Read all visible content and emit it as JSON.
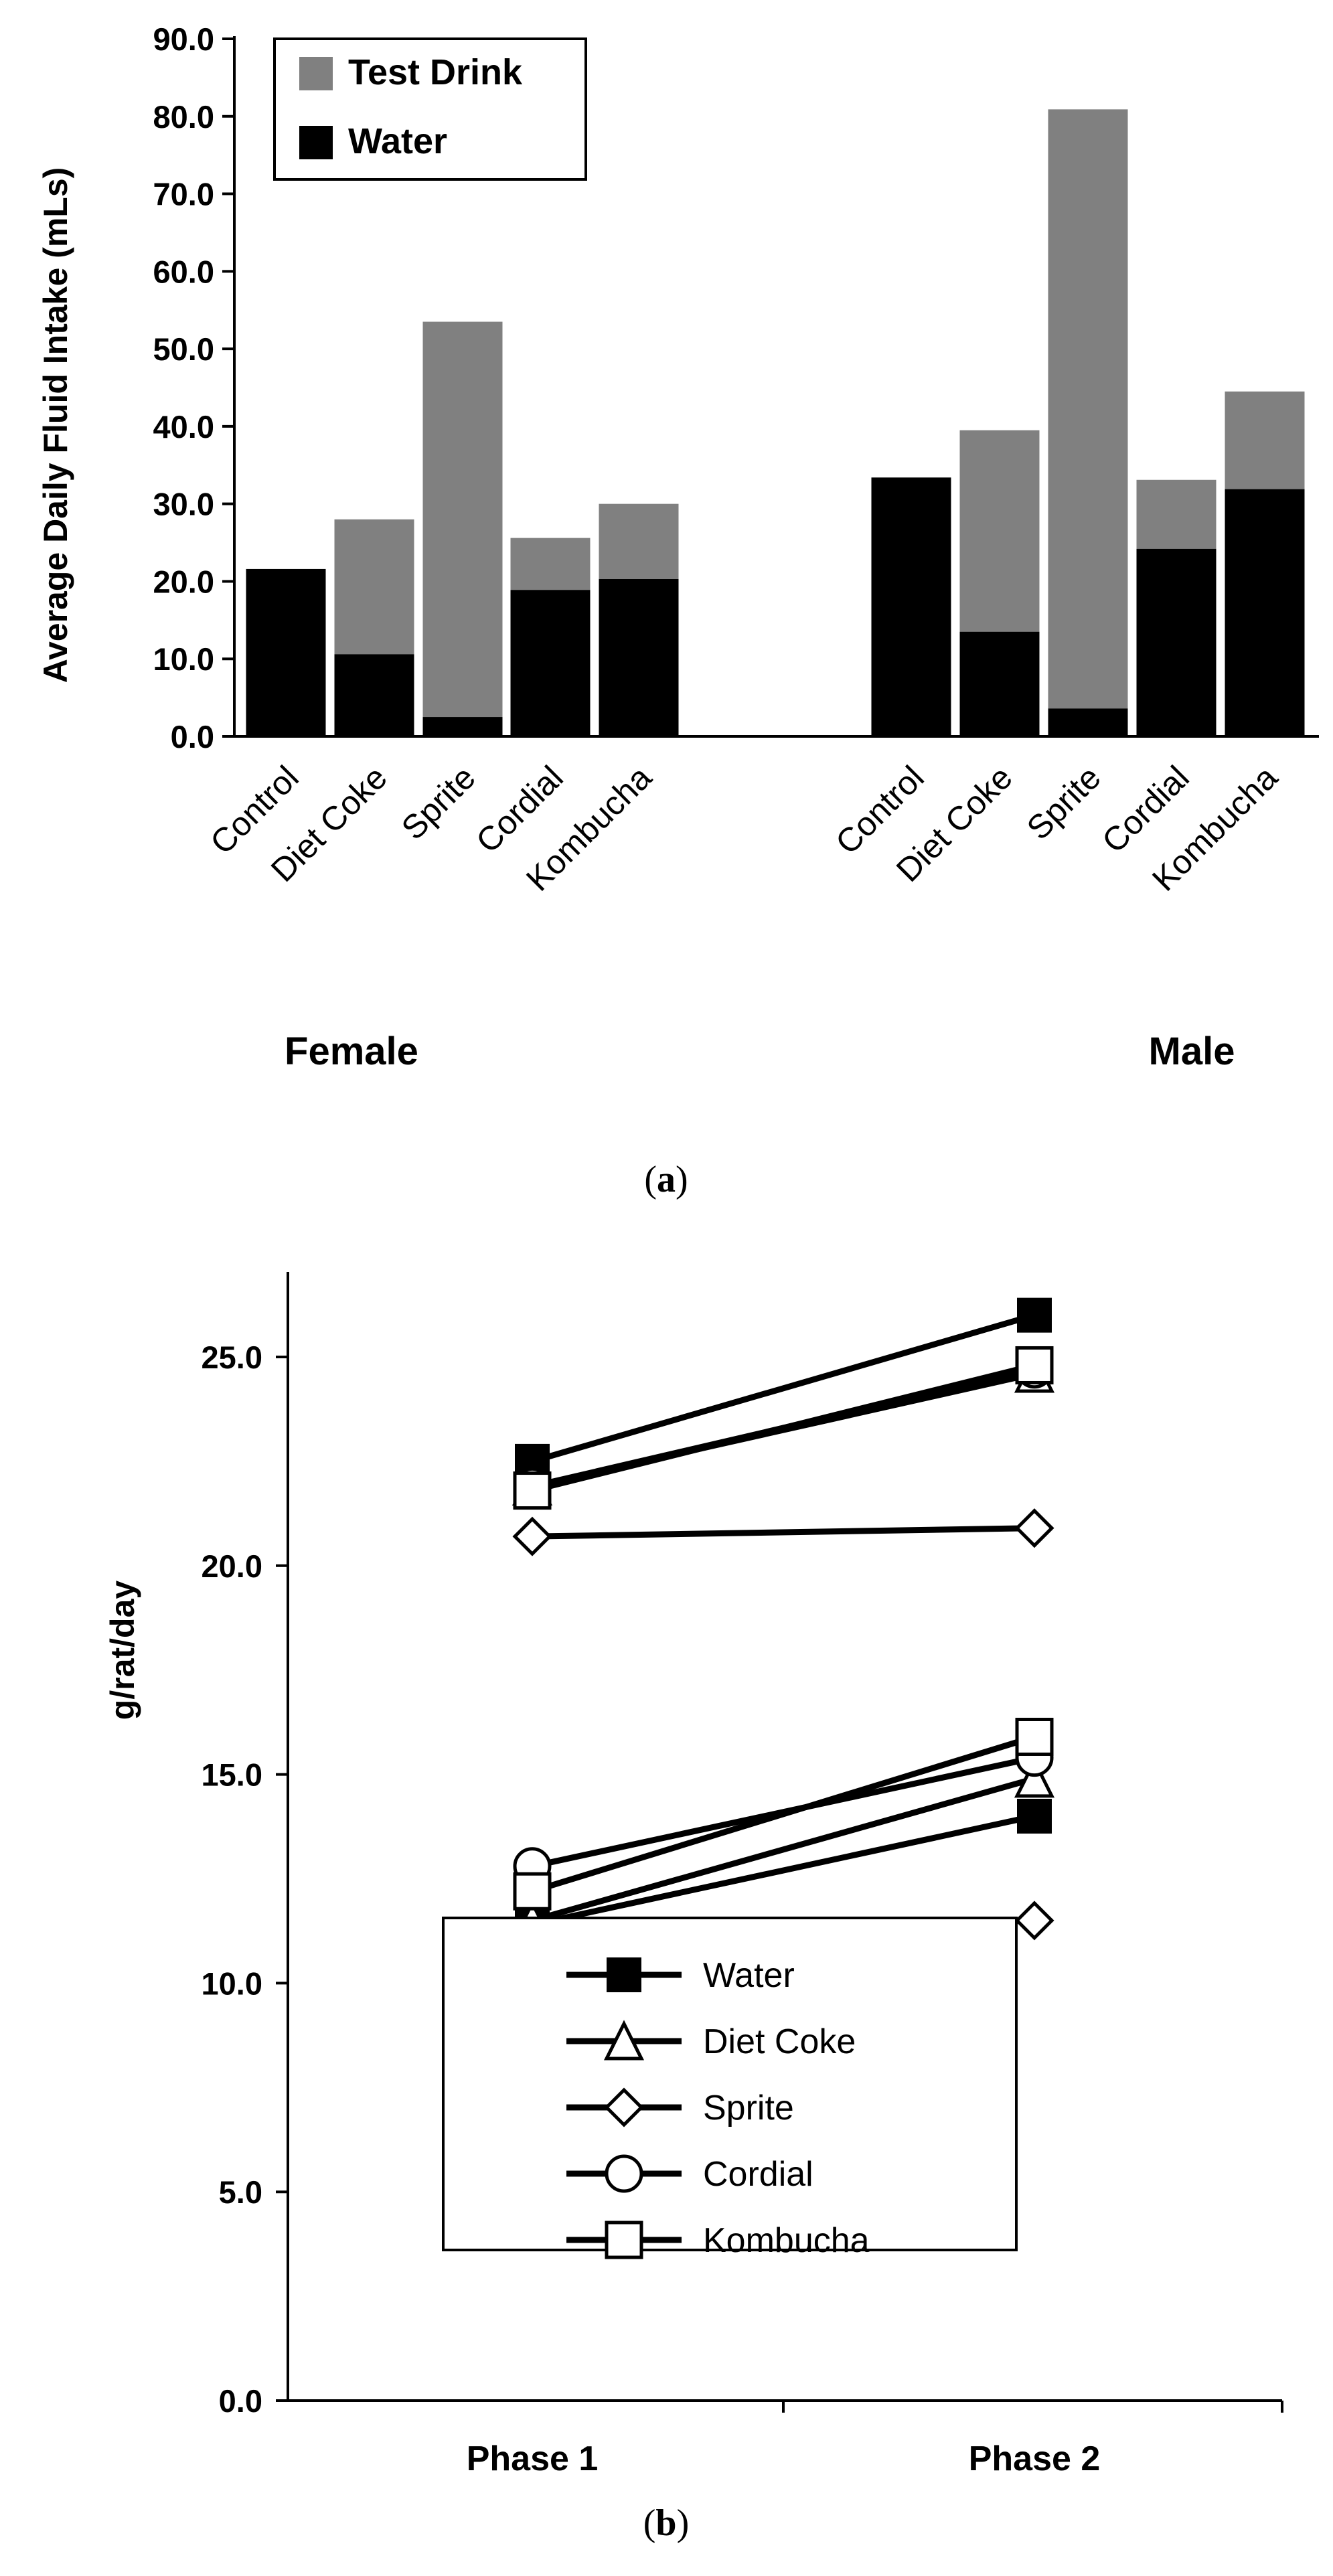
{
  "chart_data": [
    {
      "type": "bar",
      "stacked": true,
      "ylabel": "Average Daily Fluid Intake (mLs)",
      "ylim": [
        0,
        90
      ],
      "yticks": [
        "0.0",
        "10.0",
        "20.0",
        "30.0",
        "40.0",
        "50.0",
        "60.0",
        "70.0",
        "80.0",
        "90.0"
      ],
      "groups": [
        {
          "name": "Female",
          "categories": [
            "Control",
            "Diet Coke",
            "Sprite",
            "Cordial",
            "Kombucha"
          ]
        },
        {
          "name": "Male",
          "categories": [
            "Control",
            "Diet Coke",
            "Sprite",
            "Cordial",
            "Kombucha"
          ]
        }
      ],
      "series": [
        {
          "name": "Water",
          "color": "#000000",
          "values": [
            21.6,
            10.6,
            2.5,
            18.9,
            20.3,
            33.4,
            13.5,
            3.6,
            24.2,
            31.9
          ]
        },
        {
          "name": "Test Drink",
          "color": "#808080",
          "values": [
            0.0,
            17.4,
            51.0,
            6.7,
            9.7,
            0.0,
            26.0,
            77.3,
            8.9,
            12.6
          ]
        }
      ],
      "legend": {
        "position": "top-left",
        "items": [
          "Test Drink",
          "Water"
        ]
      },
      "grid": false,
      "panel_label": "(a)"
    },
    {
      "type": "line",
      "ylabel": "g/rat/day",
      "ylim": [
        0,
        27
      ],
      "yticks": [
        "0.0",
        "5.0",
        "10.0",
        "15.0",
        "20.0",
        "25.0"
      ],
      "categories": [
        "Phase 1",
        "Phase 2"
      ],
      "series": [
        {
          "name": "Water",
          "marker": "square-filled",
          "values": [
            22.5,
            26.0
          ]
        },
        {
          "name": "Diet Coke",
          "marker": "triangle-open",
          "values": [
            21.9,
            24.6
          ]
        },
        {
          "name": "Sprite",
          "marker": "diamond-open",
          "values": [
            20.7,
            20.9
          ]
        },
        {
          "name": "Cordial",
          "marker": "circle-open",
          "values": [
            21.9,
            24.7
          ]
        },
        {
          "name": "Kombucha",
          "marker": "square-open",
          "values": [
            21.8,
            24.8
          ]
        },
        {
          "name": "Water",
          "marker": "square-filled",
          "values": [
            11.4,
            14.0
          ]
        },
        {
          "name": "Diet Coke",
          "marker": "triangle-open",
          "values": [
            11.5,
            14.9
          ]
        },
        {
          "name": "Sprite",
          "marker": "diamond-open",
          "values": [
            11.3,
            11.5
          ]
        },
        {
          "name": "Cordial",
          "marker": "circle-open",
          "values": [
            12.8,
            15.4
          ]
        },
        {
          "name": "Kombucha",
          "marker": "square-open",
          "values": [
            12.2,
            15.9
          ]
        }
      ],
      "legend": {
        "position": "bottom-center",
        "items": [
          "Water",
          "Diet Coke",
          "Sprite",
          "Cordial",
          "Kombucha"
        ]
      },
      "grid": false,
      "panel_label": "(b)"
    }
  ]
}
